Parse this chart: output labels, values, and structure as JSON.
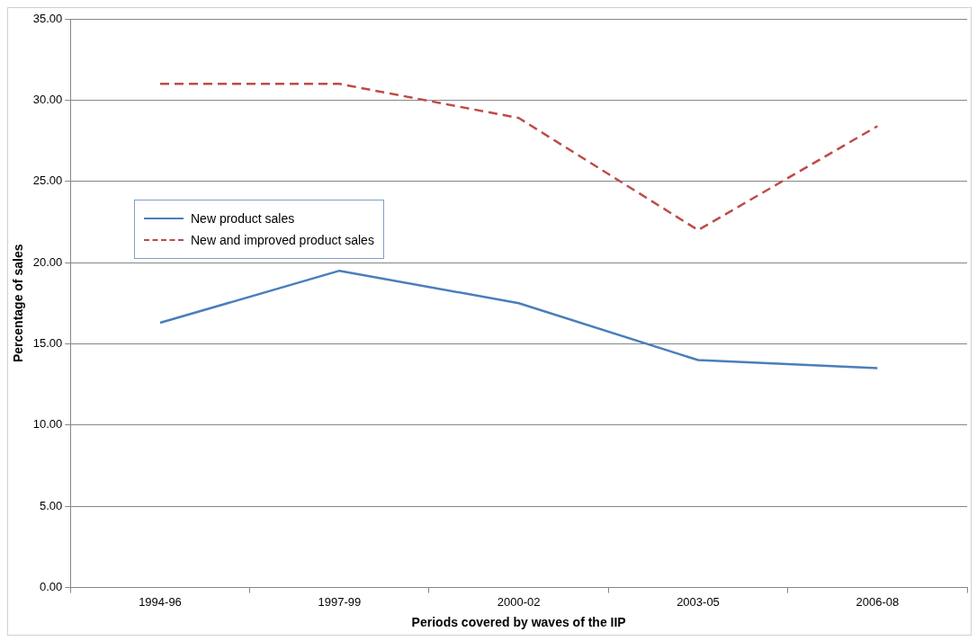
{
  "chart_data": {
    "type": "line",
    "xlabel": "Periods covered by waves of the IIP",
    "ylabel": "Percentage of sales",
    "categories": [
      "1994-96",
      "1997-99",
      "2000-02",
      "2003-05",
      "2006-08"
    ],
    "series": [
      {
        "name": "New product sales",
        "color": "#4a7ebb",
        "values": [
          16.3,
          19.5,
          17.5,
          14.0,
          13.5
        ],
        "line_style": "solid"
      },
      {
        "name": "New and improved product sales",
        "color": "#be4b48",
        "values": [
          31.0,
          31.0,
          28.9,
          22.0,
          28.4
        ],
        "line_style": "dashed"
      }
    ],
    "ylim": [
      0,
      35
    ],
    "yticks": [
      {
        "value": 0,
        "label": "0.00"
      },
      {
        "value": 5,
        "label": "5.00"
      },
      {
        "value": 10,
        "label": "10.00"
      },
      {
        "value": 15,
        "label": "15.00"
      },
      {
        "value": 20,
        "label": "20.00"
      },
      {
        "value": 25,
        "label": "25.00"
      },
      {
        "value": 30,
        "label": "30.00"
      },
      {
        "value": 35,
        "label": "35.00"
      }
    ],
    "grid": "y",
    "legend": "left",
    "marker": "none"
  }
}
